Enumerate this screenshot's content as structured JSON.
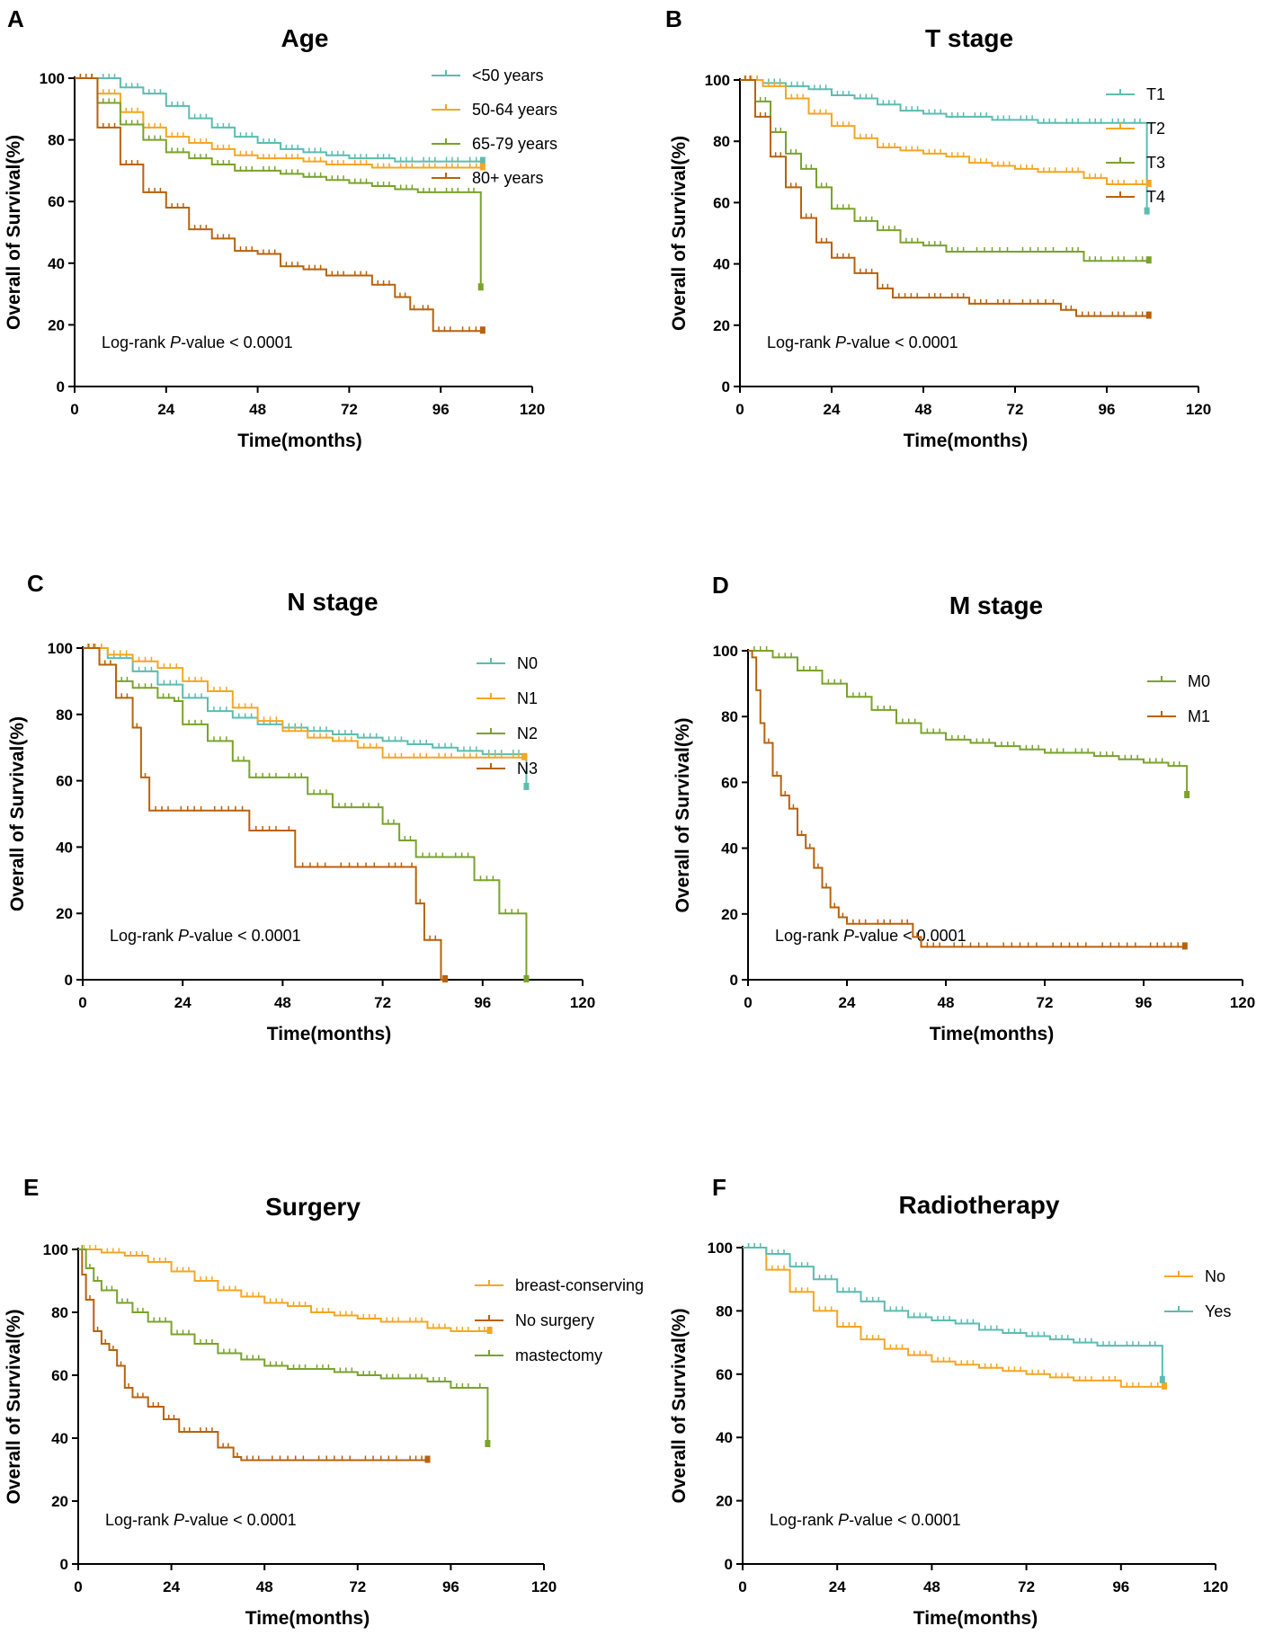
{
  "figure": {
    "type": "km-survival-panels"
  },
  "chart_data": [
    {
      "panel": "A",
      "type": "line",
      "title": "Age",
      "xlabel": "Time(months)",
      "ylabel": "Overall of Survival(%)",
      "xticks": [
        0,
        24,
        48,
        72,
        96,
        120
      ],
      "yticks": [
        0,
        20,
        40,
        60,
        80,
        100
      ],
      "xlim": [
        0,
        120
      ],
      "ylim": [
        0,
        100
      ],
      "annotation": {
        "prefix": "Log-rank ",
        "italic": "P",
        "suffix": "-value < 0.0001"
      },
      "legend_position": "top-right",
      "series": [
        {
          "name": "<50 years",
          "color": "#5bbdb0",
          "x": [
            0,
            6,
            12,
            18,
            24,
            30,
            36,
            42,
            48,
            54,
            60,
            66,
            72,
            78,
            84,
            90,
            96,
            102,
            107
          ],
          "y": [
            100,
            100,
            97,
            95,
            91,
            87,
            84,
            81,
            79,
            77,
            76,
            75,
            74,
            74,
            73,
            73,
            73,
            73,
            73
          ]
        },
        {
          "name": "50-64 years",
          "color": "#f5a623",
          "x": [
            0,
            6,
            12,
            18,
            24,
            30,
            36,
            42,
            48,
            54,
            60,
            66,
            72,
            78,
            84,
            90,
            96,
            102,
            107
          ],
          "y": [
            100,
            95,
            89,
            84,
            81,
            79,
            77,
            75,
            74,
            74,
            73,
            72,
            72,
            71,
            71,
            71,
            71,
            71,
            71
          ]
        },
        {
          "name": "65-79 years",
          "color": "#7aa32b",
          "x": [
            0,
            6,
            12,
            18,
            24,
            30,
            36,
            42,
            48,
            54,
            60,
            66,
            72,
            78,
            84,
            90,
            96,
            102,
            106,
            106.5
          ],
          "y": [
            100,
            92,
            85,
            80,
            76,
            74,
            72,
            70,
            70,
            69,
            68,
            67,
            66,
            65,
            64,
            63,
            63,
            63,
            63,
            32
          ]
        },
        {
          "name": "80+ years",
          "color": "#b8620c",
          "x": [
            0,
            6,
            12,
            18,
            24,
            30,
            36,
            42,
            48,
            54,
            60,
            66,
            72,
            78,
            84,
            88,
            90,
            94,
            100,
            107
          ],
          "y": [
            100,
            84,
            72,
            63,
            58,
            51,
            48,
            44,
            43,
            39,
            38,
            36,
            36,
            33,
            29,
            25,
            25,
            18,
            18,
            18
          ]
        }
      ]
    },
    {
      "panel": "B",
      "type": "line",
      "title": "T stage",
      "xlabel": "Time(months)",
      "ylabel": "Overall of Survival(%)",
      "xticks": [
        0,
        24,
        48,
        72,
        96,
        120
      ],
      "yticks": [
        0,
        20,
        40,
        60,
        80,
        100
      ],
      "xlim": [
        0,
        120
      ],
      "ylim": [
        0,
        100
      ],
      "annotation": {
        "prefix": "Log-rank ",
        "italic": "P",
        "suffix": "-value < 0.0001"
      },
      "legend_position": "top-right",
      "series": [
        {
          "name": "T1",
          "color": "#5bbdb0",
          "x": [
            0,
            6,
            12,
            18,
            24,
            30,
            36,
            42,
            48,
            54,
            60,
            66,
            72,
            78,
            84,
            90,
            96,
            102,
            106,
            106.5
          ],
          "y": [
            100,
            99,
            98,
            97,
            95,
            94,
            92,
            90,
            89,
            88,
            88,
            87,
            87,
            86,
            86,
            86,
            86,
            86,
            86,
            57
          ]
        },
        {
          "name": "T2",
          "color": "#f5a623",
          "x": [
            0,
            6,
            12,
            18,
            24,
            30,
            36,
            42,
            48,
            54,
            60,
            66,
            72,
            78,
            84,
            90,
            96,
            102,
            107
          ],
          "y": [
            100,
            98,
            94,
            89,
            85,
            81,
            78,
            77,
            76,
            75,
            73,
            72,
            71,
            70,
            70,
            68,
            66,
            66,
            66
          ]
        },
        {
          "name": "T3",
          "color": "#7aa32b",
          "x": [
            0,
            4,
            8,
            12,
            16,
            20,
            24,
            30,
            36,
            42,
            48,
            54,
            60,
            72,
            84,
            90,
            96,
            102,
            107
          ],
          "y": [
            100,
            93,
            83,
            76,
            71,
            65,
            58,
            54,
            51,
            47,
            46,
            44,
            44,
            44,
            44,
            41,
            41,
            41,
            41
          ]
        },
        {
          "name": "T4",
          "color": "#b8620c",
          "x": [
            0,
            4,
            8,
            12,
            16,
            20,
            24,
            30,
            36,
            40,
            48,
            54,
            60,
            66,
            72,
            84,
            88,
            96,
            102,
            107
          ],
          "y": [
            100,
            88,
            75,
            65,
            55,
            47,
            42,
            37,
            32,
            29,
            29,
            29,
            27,
            27,
            27,
            25,
            23,
            23,
            23,
            23
          ]
        }
      ]
    },
    {
      "panel": "C",
      "type": "line",
      "title": "N stage",
      "xlabel": "Time(months)",
      "ylabel": "Overall of Survival(%)",
      "xticks": [
        0,
        24,
        48,
        72,
        96,
        120
      ],
      "yticks": [
        0,
        20,
        40,
        60,
        80,
        100
      ],
      "xlim": [
        0,
        120
      ],
      "ylim": [
        0,
        100
      ],
      "annotation": {
        "prefix": "Log-rank ",
        "italic": "P",
        "suffix": "-value < 0.0001"
      },
      "legend_position": "top-right",
      "series": [
        {
          "name": "N0",
          "color": "#5bbdb0",
          "x": [
            0,
            6,
            12,
            18,
            24,
            30,
            36,
            42,
            48,
            54,
            60,
            66,
            72,
            78,
            84,
            90,
            96,
            102,
            106,
            106.5
          ],
          "y": [
            100,
            97,
            93,
            89,
            85,
            81,
            79,
            77,
            76,
            75,
            74,
            73,
            72,
            71,
            70,
            69,
            68,
            68,
            68,
            58
          ]
        },
        {
          "name": "N1",
          "color": "#f5a623",
          "x": [
            0,
            6,
            12,
            18,
            24,
            30,
            36,
            42,
            48,
            54,
            60,
            66,
            72,
            78,
            84,
            90,
            96,
            102,
            106
          ],
          "y": [
            100,
            98,
            96,
            94,
            90,
            87,
            82,
            78,
            75,
            73,
            72,
            70,
            67,
            67,
            67,
            67,
            67,
            67,
            67
          ]
        },
        {
          "name": "N2",
          "color": "#7aa32b",
          "x": [
            0,
            4,
            8,
            12,
            18,
            22,
            24,
            30,
            36,
            40,
            48,
            54,
            60,
            66,
            70,
            72,
            76,
            80,
            88,
            94,
            100,
            106,
            106.5
          ],
          "y": [
            100,
            95,
            90,
            88,
            85,
            84,
            77,
            72,
            66,
            61,
            61,
            56,
            52,
            52,
            52,
            47,
            42,
            37,
            37,
            30,
            20,
            20,
            0
          ]
        },
        {
          "name": "N3",
          "color": "#b8620c",
          "x": [
            0,
            4,
            8,
            12,
            14,
            16,
            22,
            30,
            40,
            48,
            51,
            60,
            72,
            78,
            80,
            82,
            86,
            87
          ],
          "y": [
            100,
            95,
            85,
            76,
            61,
            51,
            51,
            51,
            45,
            45,
            34,
            34,
            34,
            34,
            23,
            12,
            0,
            0
          ]
        }
      ]
    },
    {
      "panel": "D",
      "type": "line",
      "title": "M stage",
      "xlabel": "Time(months)",
      "ylabel": "Overall of Survival(%)",
      "xticks": [
        0,
        24,
        48,
        72,
        96,
        120
      ],
      "yticks": [
        0,
        20,
        40,
        60,
        80,
        100
      ],
      "xlim": [
        0,
        120
      ],
      "ylim": [
        0,
        100
      ],
      "annotation": {
        "prefix": "Log-rank ",
        "italic": "P",
        "suffix": "-value < 0.0001"
      },
      "legend_position": "top-right",
      "series": [
        {
          "name": "M0",
          "color": "#7aa32b",
          "x": [
            0,
            6,
            12,
            18,
            24,
            30,
            36,
            42,
            48,
            54,
            60,
            66,
            72,
            78,
            84,
            90,
            96,
            102,
            106,
            106.5
          ],
          "y": [
            100,
            98,
            94,
            90,
            86,
            82,
            78,
            75,
            73,
            72,
            71,
            70,
            69,
            69,
            68,
            67,
            66,
            65,
            65,
            56
          ]
        },
        {
          "name": "M1",
          "color": "#b8620c",
          "x": [
            0,
            1,
            2,
            3,
            4,
            6,
            8,
            10,
            12,
            14,
            16,
            18,
            20,
            22,
            24,
            30,
            36,
            40,
            42,
            48,
            60,
            72,
            84,
            96,
            106
          ],
          "y": [
            100,
            98,
            88,
            78,
            72,
            62,
            56,
            52,
            44,
            40,
            34,
            28,
            22,
            19,
            17,
            17,
            17,
            13,
            10,
            10,
            10,
            10,
            10,
            10,
            10
          ]
        }
      ]
    },
    {
      "panel": "E",
      "type": "line",
      "title": "Surgery",
      "xlabel": "Time(months)",
      "ylabel": "Overall of Survival(%)",
      "xticks": [
        0,
        24,
        48,
        72,
        96,
        120
      ],
      "yticks": [
        0,
        20,
        40,
        60,
        80,
        100
      ],
      "xlim": [
        0,
        120
      ],
      "ylim": [
        0,
        100
      ],
      "annotation": {
        "prefix": "Log-rank ",
        "italic": "P",
        "suffix": "-value < 0.0001"
      },
      "legend_position": "top-right",
      "series": [
        {
          "name": "breast-conserving",
          "color": "#f5a623",
          "x": [
            0,
            6,
            12,
            18,
            24,
            30,
            36,
            42,
            48,
            54,
            60,
            66,
            72,
            78,
            84,
            90,
            96,
            102,
            106
          ],
          "y": [
            100,
            99,
            98,
            96,
            93,
            90,
            87,
            85,
            83,
            82,
            80,
            79,
            78,
            77,
            77,
            75,
            74,
            74,
            74
          ]
        },
        {
          "name": "No surgery",
          "color": "#b8620c",
          "x": [
            0,
            1,
            2,
            4,
            6,
            8,
            10,
            12,
            14,
            18,
            22,
            26,
            30,
            36,
            40,
            42,
            48,
            60,
            72,
            84,
            90
          ],
          "y": [
            100,
            92,
            84,
            74,
            70,
            68,
            63,
            56,
            53,
            50,
            46,
            42,
            42,
            37,
            34,
            33,
            33,
            33,
            33,
            33,
            33
          ]
        },
        {
          "name": "mastectomy",
          "color": "#7aa32b",
          "x": [
            0,
            2,
            4,
            6,
            10,
            14,
            18,
            24,
            30,
            36,
            42,
            48,
            54,
            60,
            66,
            72,
            78,
            84,
            90,
            96,
            102,
            105,
            105.5
          ],
          "y": [
            100,
            94,
            90,
            87,
            83,
            80,
            77,
            73,
            70,
            67,
            65,
            63,
            62,
            62,
            61,
            60,
            59,
            59,
            58,
            56,
            56,
            56,
            38
          ]
        }
      ]
    },
    {
      "panel": "F",
      "type": "line",
      "title": "Radiotherapy",
      "xlabel": "Time(months)",
      "ylabel": "Overall of Survival(%)",
      "xticks": [
        0,
        24,
        48,
        72,
        96,
        120
      ],
      "yticks": [
        0,
        20,
        40,
        60,
        80,
        100
      ],
      "xlim": [
        0,
        120
      ],
      "ylim": [
        0,
        100
      ],
      "annotation": {
        "prefix": "Log-rank ",
        "italic": "P",
        "suffix": "-value < 0.0001"
      },
      "legend_position": "top-right",
      "series": [
        {
          "name": "No",
          "color": "#f5a623",
          "x": [
            0,
            6,
            12,
            18,
            24,
            30,
            36,
            42,
            48,
            54,
            60,
            66,
            72,
            78,
            84,
            90,
            96,
            102,
            107
          ],
          "y": [
            100,
            93,
            86,
            80,
            75,
            71,
            68,
            66,
            64,
            63,
            62,
            61,
            60,
            59,
            58,
            58,
            56,
            56,
            56
          ]
        },
        {
          "name": "Yes",
          "color": "#5bbdb0",
          "x": [
            0,
            6,
            12,
            18,
            24,
            30,
            36,
            42,
            48,
            54,
            60,
            66,
            72,
            78,
            84,
            90,
            96,
            102,
            106,
            106.5
          ],
          "y": [
            100,
            98,
            94,
            90,
            86,
            83,
            80,
            78,
            77,
            76,
            74,
            73,
            72,
            71,
            70,
            69,
            69,
            69,
            69,
            58
          ]
        }
      ]
    }
  ]
}
